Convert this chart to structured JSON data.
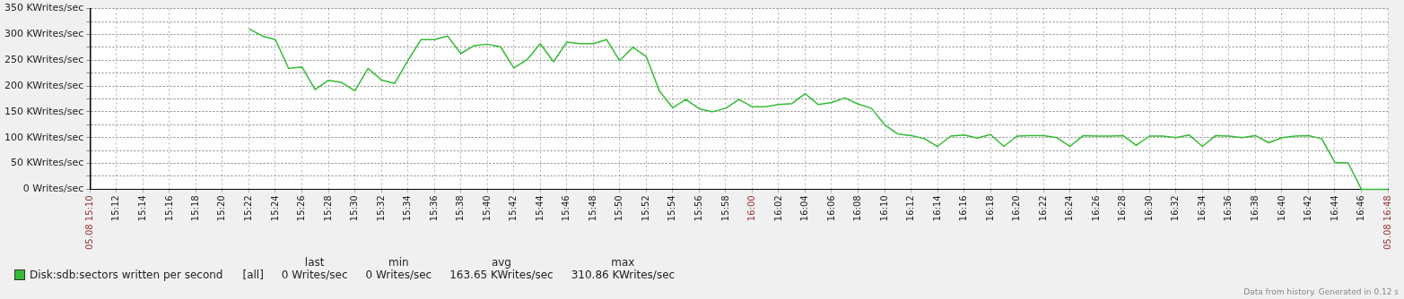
{
  "chart_data": {
    "type": "line",
    "x": [
      15.3667,
      15.3833,
      15.4,
      15.4167,
      15.4333,
      15.45,
      15.4667,
      15.4833,
      15.5,
      15.5167,
      15.5333,
      15.55,
      15.5667,
      15.5833,
      15.6,
      15.6167,
      15.6333,
      15.65,
      15.6667,
      15.6833,
      15.7,
      15.7167,
      15.7333,
      15.75,
      15.7667,
      15.7833,
      15.8,
      15.8167,
      15.8333,
      15.85,
      15.8667,
      15.8833,
      15.9,
      15.9167,
      15.9333,
      15.95,
      15.9667,
      15.9833,
      16,
      16.0167,
      16.0333,
      16.05,
      16.0667,
      16.0833,
      16.1,
      16.1167,
      16.1333,
      16.15,
      16.1667,
      16.1833,
      16.2,
      16.2167,
      16.2333,
      16.25,
      16.2667,
      16.2833,
      16.3,
      16.3167,
      16.3333,
      16.35,
      16.3667,
      16.3833,
      16.4,
      16.4167,
      16.4333,
      16.45,
      16.4667,
      16.4833,
      16.5,
      16.5167,
      16.5333,
      16.55,
      16.5667,
      16.5833,
      16.6,
      16.6167,
      16.6333,
      16.65,
      16.6667,
      16.6833,
      16.7,
      16.7167,
      16.7333,
      16.75,
      16.7667,
      16.7833,
      16.8
    ],
    "series": [
      {
        "name": "Disk:sdb:sectors written per second",
        "color": "#33bb33",
        "values": [
          311,
          297,
          290,
          234,
          237,
          193,
          211,
          207,
          191,
          234,
          212,
          205,
          249,
          290,
          290,
          297,
          263,
          278,
          281,
          276,
          235,
          251,
          282,
          247,
          285,
          282,
          282,
          290,
          249,
          275,
          257,
          190,
          158,
          174,
          156,
          150,
          157,
          174,
          160,
          160,
          164,
          166,
          185,
          164,
          168,
          177,
          165,
          157,
          125,
          107,
          104,
          98,
          83,
          103,
          105,
          99,
          106,
          83,
          103,
          104,
          104,
          100,
          83,
          104,
          103,
          103,
          104,
          85,
          103,
          103,
          100,
          105,
          83,
          104,
          103,
          100,
          104,
          90,
          100,
          103,
          104,
          98,
          52,
          51,
          0,
          0,
          0
        ]
      }
    ],
    "xlim": [
      15.1667,
      16.8
    ],
    "xticks": [
      {
        "value": 15.1667,
        "label": "05.08 15:10"
      },
      {
        "value": 15.2,
        "label": "15:12"
      },
      {
        "value": 15.2333,
        "label": "15:14"
      },
      {
        "value": 15.2667,
        "label": "15:16"
      },
      {
        "value": 15.3,
        "label": "15:18"
      },
      {
        "value": 15.3333,
        "label": "15:20"
      },
      {
        "value": 15.3667,
        "label": "15:22"
      },
      {
        "value": 15.4,
        "label": "15:24"
      },
      {
        "value": 15.4333,
        "label": "15:26"
      },
      {
        "value": 15.4667,
        "label": "15:28"
      },
      {
        "value": 15.5,
        "label": "15:30"
      },
      {
        "value": 15.5333,
        "label": "15:32"
      },
      {
        "value": 15.5667,
        "label": "15:34"
      },
      {
        "value": 15.6,
        "label": "15:36"
      },
      {
        "value": 15.6333,
        "label": "15:38"
      },
      {
        "value": 15.6667,
        "label": "15:40"
      },
      {
        "value": 15.7,
        "label": "15:42"
      },
      {
        "value": 15.7333,
        "label": "15:44"
      },
      {
        "value": 15.7667,
        "label": "15:46"
      },
      {
        "value": 15.8,
        "label": "15:48"
      },
      {
        "value": 15.8333,
        "label": "15:50"
      },
      {
        "value": 15.8667,
        "label": "15:52"
      },
      {
        "value": 15.9,
        "label": "15:54"
      },
      {
        "value": 15.9333,
        "label": "15:56"
      },
      {
        "value": 15.9667,
        "label": "15:58"
      },
      {
        "value": 16,
        "label": "16:00"
      },
      {
        "value": 16.0333,
        "label": "16:02"
      },
      {
        "value": 16.0667,
        "label": "16:04"
      },
      {
        "value": 16.1,
        "label": "16:06"
      },
      {
        "value": 16.1333,
        "label": "16:08"
      },
      {
        "value": 16.1667,
        "label": "16:10"
      },
      {
        "value": 16.2,
        "label": "16:12"
      },
      {
        "value": 16.2333,
        "label": "16:14"
      },
      {
        "value": 16.2667,
        "label": "16:16"
      },
      {
        "value": 16.3,
        "label": "16:18"
      },
      {
        "value": 16.3333,
        "label": "16:20"
      },
      {
        "value": 16.3667,
        "label": "16:22"
      },
      {
        "value": 16.4,
        "label": "16:24"
      },
      {
        "value": 16.4333,
        "label": "16:26"
      },
      {
        "value": 16.4667,
        "label": "16:28"
      },
      {
        "value": 16.5,
        "label": "16:30"
      },
      {
        "value": 16.5333,
        "label": "16:32"
      },
      {
        "value": 16.5667,
        "label": "16:34"
      },
      {
        "value": 16.6,
        "label": "16:36"
      },
      {
        "value": 16.6333,
        "label": "16:38"
      },
      {
        "value": 16.6667,
        "label": "16:40"
      },
      {
        "value": 16.7,
        "label": "16:42"
      },
      {
        "value": 16.7333,
        "label": "16:44"
      },
      {
        "value": 16.7667,
        "label": "16:46"
      },
      {
        "value": 16.8,
        "label": "05.08 16:48"
      }
    ],
    "ylim": [
      0,
      350
    ],
    "yticks": [
      {
        "value": 0,
        "label": "0 Writes/sec"
      },
      {
        "value": 25,
        "label": null
      },
      {
        "value": 50,
        "label": "50 KWrites/sec"
      },
      {
        "value": 75,
        "label": null
      },
      {
        "value": 100,
        "label": "100 KWrites/sec"
      },
      {
        "value": 125,
        "label": null
      },
      {
        "value": 150,
        "label": "150 KWrites/sec"
      },
      {
        "value": 175,
        "label": null
      },
      {
        "value": 200,
        "label": "200 KWrites/sec"
      },
      {
        "value": 225,
        "label": null
      },
      {
        "value": 250,
        "label": "250 KWrites/sec"
      },
      {
        "value": 275,
        "label": null
      },
      {
        "value": 300,
        "label": "300 KWrites/sec"
      },
      {
        "value": 325,
        "label": null
      },
      {
        "value": 350,
        "label": "350 KWrites/sec"
      }
    ],
    "grid": true,
    "legend": "bottom left",
    "marker": "none",
    "line_style": "solid",
    "annotations": [
      "[all]",
      "last",
      "min",
      "avg",
      "max",
      "0 Writes/sec",
      "0 Writes/sec",
      "163.65 KWrites/sec",
      "310.86 KWrites/sec",
      "Data from history. Generated in 0.12 s"
    ]
  }
}
